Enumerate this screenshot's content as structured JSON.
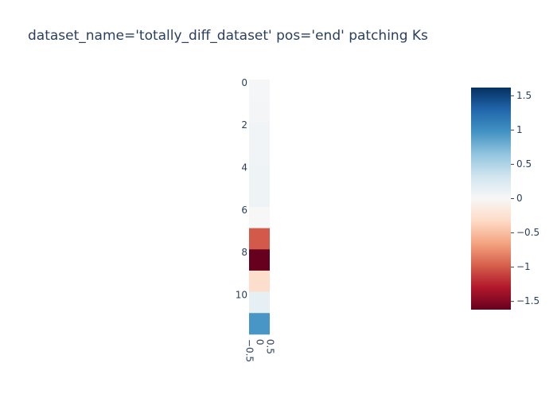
{
  "chart_data": {
    "type": "heatmap",
    "title": "dataset_name='totally_diff_dataset' pos='end' patching Ks",
    "xlabel": "",
    "ylabel": "",
    "x": [
      0
    ],
    "y": [
      0,
      1,
      2,
      3,
      4,
      5,
      6,
      7,
      8,
      9,
      10,
      11
    ],
    "values": [
      [
        0.02
      ],
      [
        0.03
      ],
      [
        0.05
      ],
      [
        0.06
      ],
      [
        0.08
      ],
      [
        0.08
      ],
      [
        0.0
      ],
      [
        -1.0
      ],
      [
        -1.62
      ],
      [
        -0.3
      ],
      [
        0.15
      ],
      [
        0.95
      ]
    ],
    "y_tick_labels": [
      "0",
      "2",
      "4",
      "6",
      "8",
      "10"
    ],
    "x_tick_labels": [
      "−0.5",
      "0",
      "0.5"
    ],
    "zlim": [
      -1.62,
      1.62
    ],
    "colorbar": {
      "tick_labels": [
        "1.5",
        "1",
        "0.5",
        "0",
        "−0.5",
        "−1",
        "−1.5"
      ],
      "tick_values": [
        1.5,
        1,
        0.5,
        0,
        -0.5,
        -1,
        -1.5
      ]
    },
    "colorscale": [
      "#67001f",
      "#b2182b",
      "#d6604d",
      "#f4a582",
      "#fddbc7",
      "#f7f7f7",
      "#d1e5f0",
      "#92c5de",
      "#4393c3",
      "#2166ac",
      "#053061"
    ],
    "y_axis": "reversed",
    "grid": false
  }
}
